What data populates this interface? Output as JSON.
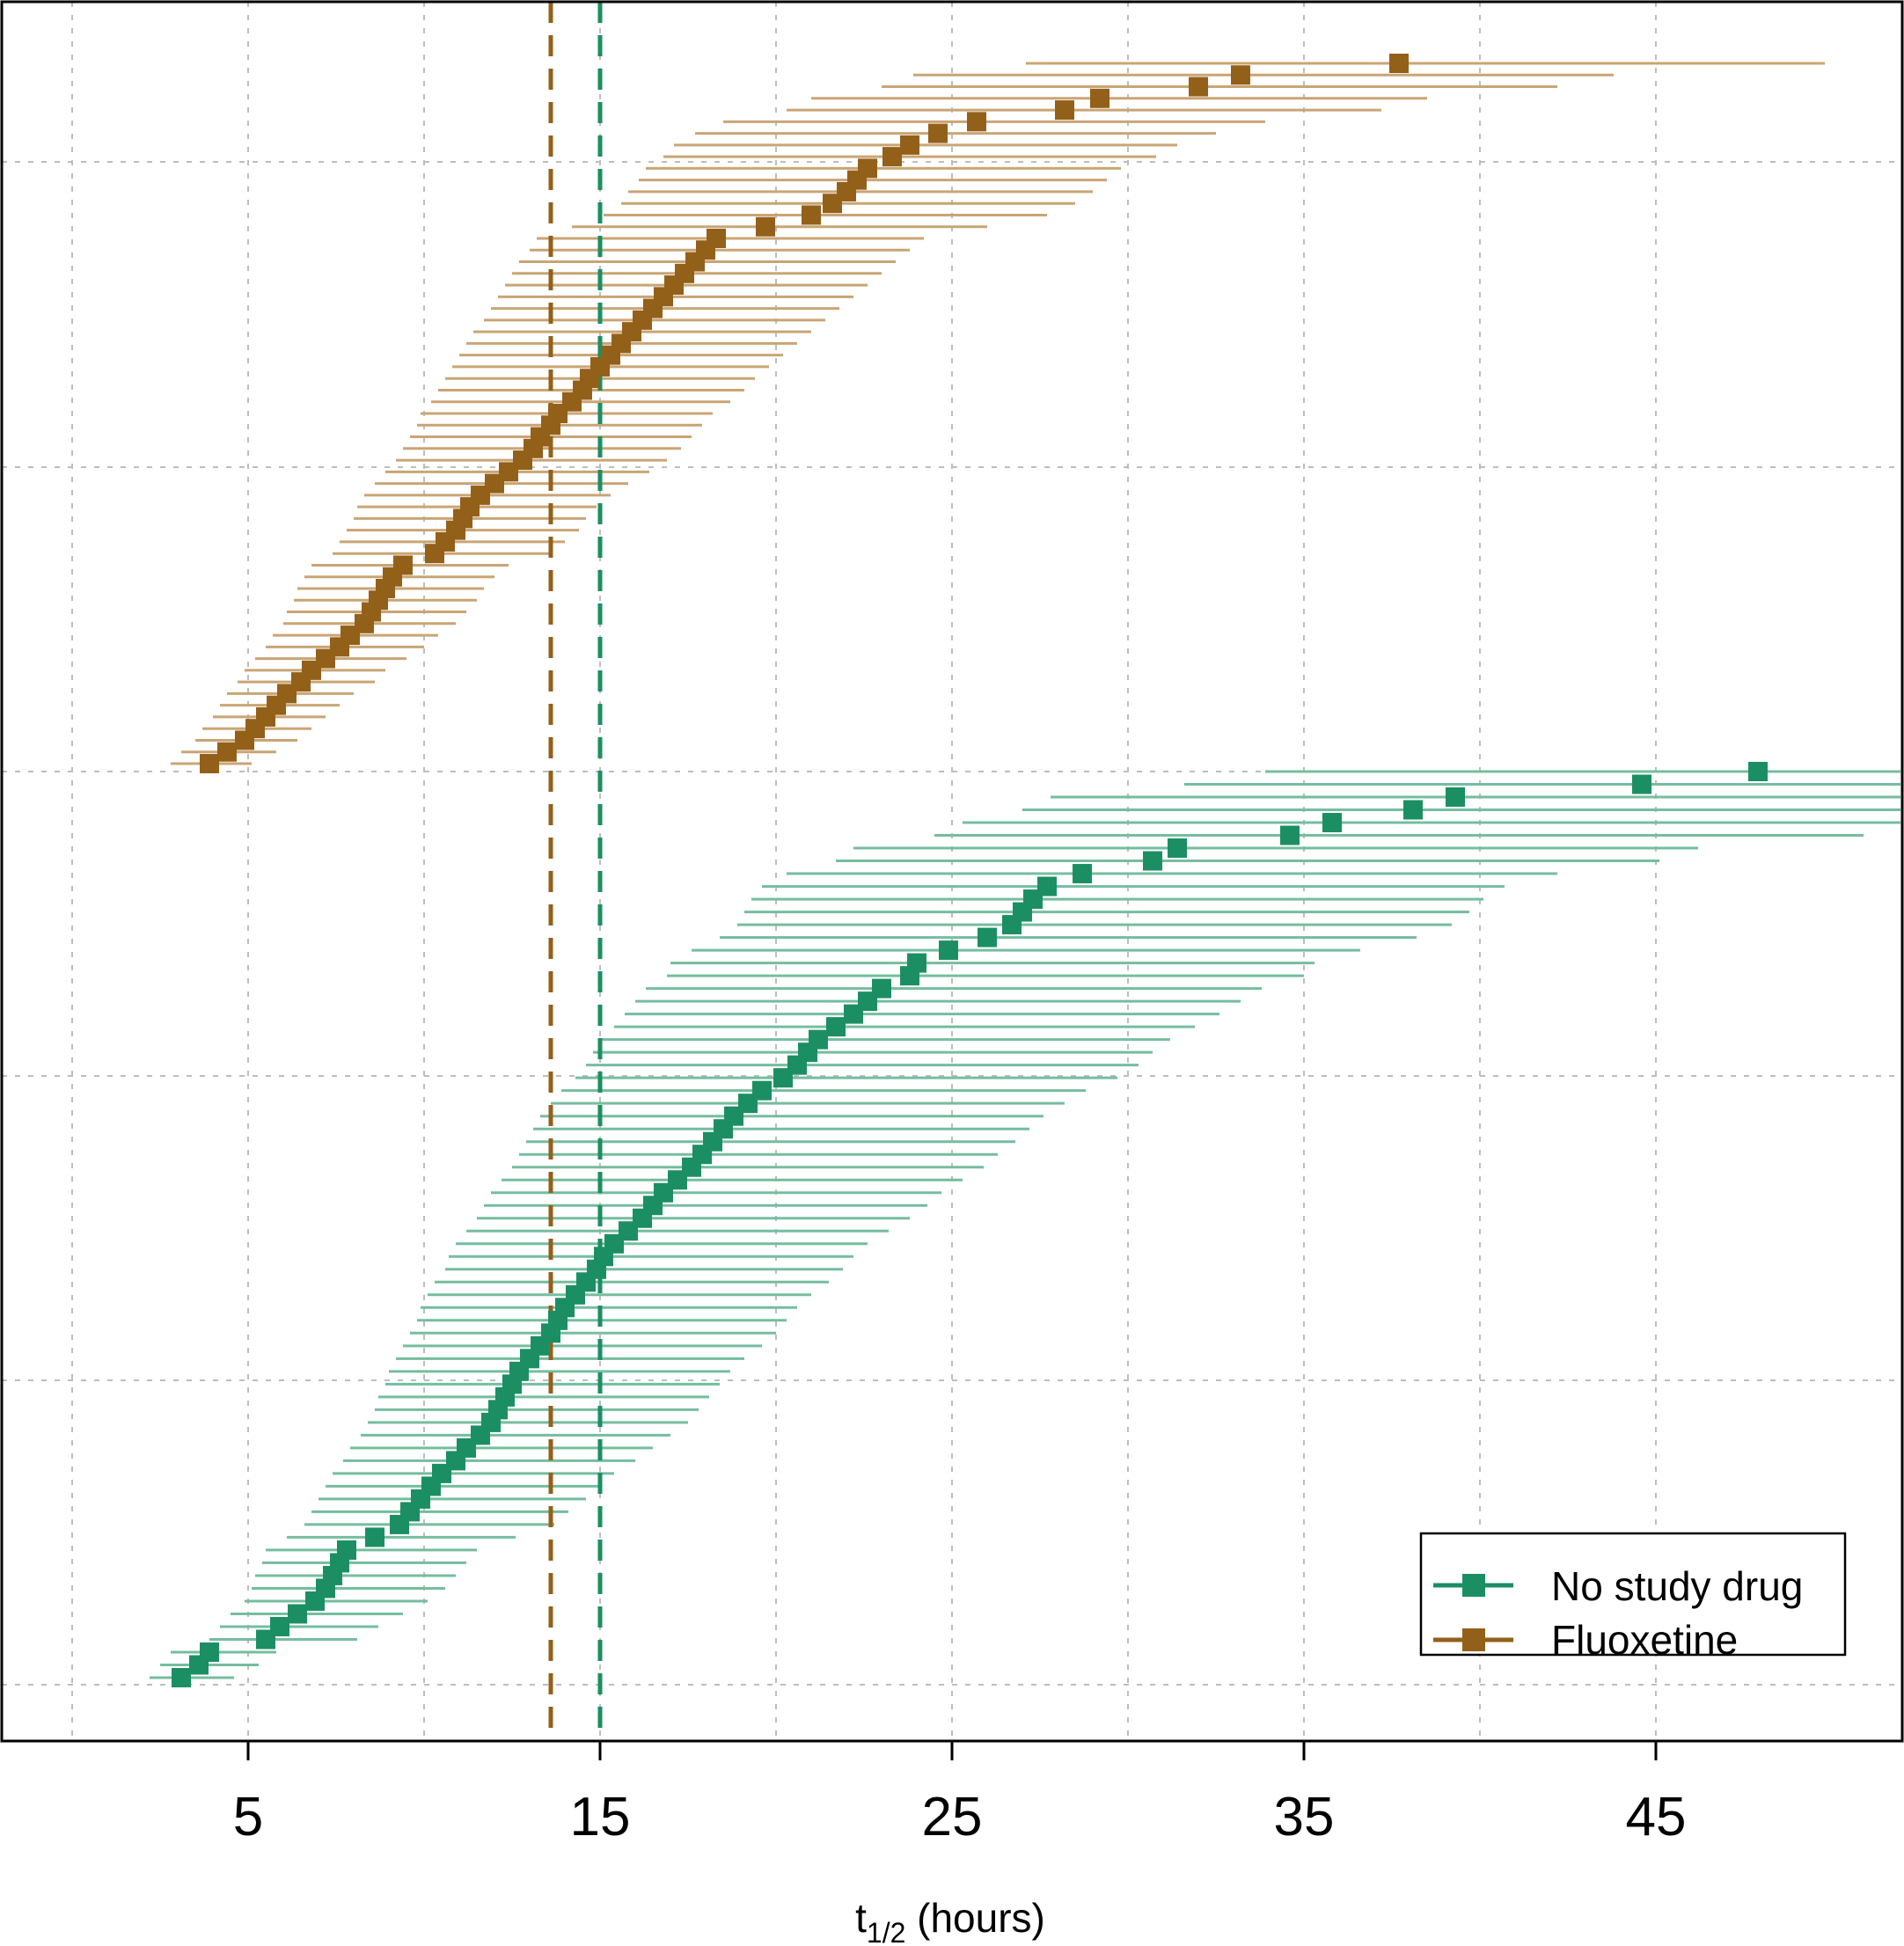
{
  "colors": {
    "no_study_drug": "#1b8f63",
    "no_study_drug_ci": "#75bd9f",
    "fluoxetine": "#93601a",
    "fluoxetine_ci": "#c9a574",
    "grid": "#bdbdbd",
    "frame": "#000000"
  },
  "chart_data": {
    "type": "scatter",
    "subtype": "ordered point estimates with horizontal confidence intervals (caterpillar plot)",
    "x_axis": {
      "label_main": "t",
      "label_subscript": "1/2",
      "label_unit": "(hours)",
      "ticks": [
        "5",
        "15",
        "25",
        "35",
        "45"
      ],
      "tick_values": [
        5,
        15,
        25,
        35,
        45
      ],
      "range": [
        0,
        47.2
      ],
      "minor_grid_values": [
        0,
        10,
        20,
        30,
        40
      ]
    },
    "y_axis": {
      "labels": "none",
      "gridlines": 6
    },
    "grid": true,
    "reference_lines": [
      {
        "series": "Fluoxetine",
        "x": 13.6,
        "style": "dashed"
      },
      {
        "series": "No study drug",
        "x": 15.0,
        "style": "dashed"
      }
    ],
    "legend": {
      "position": "bottom-right",
      "entries": [
        {
          "label": "No study drug",
          "series": "No study drug"
        },
        {
          "label": "Fluoxetine",
          "series": "Fluoxetine"
        }
      ]
    },
    "series": [
      {
        "name": "Fluoxetine",
        "note": "participants ranked by estimated half-life; each row has a point estimate with a horizontal interval",
        "estimates": [
          3.9,
          4.4,
          4.9,
          5.2,
          5.5,
          5.8,
          6.1,
          6.5,
          6.8,
          7.2,
          7.6,
          7.9,
          8.3,
          8.5,
          8.7,
          8.9,
          9.1,
          9.4,
          10.3,
          10.6,
          10.9,
          11.1,
          11.3,
          11.6,
          12.0,
          12.4,
          12.8,
          13.1,
          13.3,
          13.6,
          13.8,
          14.2,
          14.5,
          14.7,
          15.0,
          15.3,
          15.6,
          15.9,
          16.2,
          16.5,
          16.8,
          17.1,
          17.4,
          17.7,
          18.0,
          18.3,
          19.7,
          21.0,
          21.6,
          22.0,
          22.3,
          22.6,
          23.3,
          23.8,
          24.6,
          25.7,
          28.2,
          29.2,
          32.0,
          33.2,
          37.7
        ],
        "ci_low": [
          2.8,
          3.1,
          3.5,
          3.7,
          4.0,
          4.2,
          4.4,
          4.7,
          4.9,
          5.2,
          5.5,
          5.7,
          6.0,
          6.1,
          6.3,
          6.4,
          6.6,
          6.8,
          7.4,
          7.6,
          7.8,
          8.0,
          8.1,
          8.3,
          8.6,
          8.9,
          9.2,
          9.4,
          9.6,
          9.8,
          9.9,
          10.2,
          10.4,
          10.6,
          10.8,
          11.0,
          11.2,
          11.4,
          11.7,
          11.9,
          12.1,
          12.3,
          12.5,
          12.7,
          13.0,
          13.2,
          14.2,
          15.1,
          15.6,
          15.8,
          16.1,
          16.3,
          16.8,
          17.1,
          17.7,
          18.5,
          20.3,
          21.0,
          23.0,
          23.9,
          27.1
        ],
        "ci_high": [
          5.1,
          5.8,
          6.4,
          6.8,
          7.2,
          7.6,
          8.0,
          8.6,
          8.9,
          9.5,
          10.0,
          10.4,
          10.9,
          11.2,
          11.5,
          11.7,
          12.0,
          12.4,
          13.6,
          14.0,
          14.4,
          14.6,
          14.9,
          15.3,
          15.8,
          16.4,
          16.9,
          17.3,
          17.6,
          17.9,
          18.2,
          18.7,
          19.1,
          19.4,
          19.8,
          20.2,
          20.6,
          21.0,
          21.4,
          21.8,
          22.2,
          22.6,
          23.0,
          23.4,
          23.8,
          24.2,
          26.0,
          27.7,
          28.5,
          29.0,
          29.4,
          29.8,
          30.8,
          31.4,
          32.5,
          33.9,
          37.2,
          38.5,
          42.2,
          43.8,
          49.8
        ]
      },
      {
        "name": "No study drug",
        "note": "participants ranked by estimated half-life; each row has a point estimate with a horizontal interval",
        "estimates": [
          3.1,
          3.6,
          3.9,
          5.5,
          5.9,
          6.4,
          6.9,
          7.2,
          7.4,
          7.6,
          7.8,
          8.6,
          9.3,
          9.6,
          9.9,
          10.2,
          10.5,
          10.9,
          11.2,
          11.6,
          11.9,
          12.1,
          12.3,
          12.5,
          12.7,
          13.0,
          13.3,
          13.6,
          13.8,
          14.0,
          14.3,
          14.6,
          14.9,
          15.1,
          15.4,
          15.8,
          16.2,
          16.5,
          16.8,
          17.2,
          17.6,
          17.9,
          18.2,
          18.5,
          18.8,
          19.2,
          19.6,
          20.2,
          20.6,
          20.9,
          21.2,
          21.7,
          22.2,
          22.6,
          23.0,
          23.8,
          24.0,
          24.9,
          26.0,
          26.7,
          27.0,
          27.3,
          27.7,
          28.7,
          30.7,
          31.4,
          34.6,
          35.8,
          38.1,
          39.3,
          44.6,
          47.9
        ],
        "ci_low": [
          2.2,
          2.5,
          2.8,
          3.9,
          4.2,
          4.5,
          4.9,
          5.1,
          5.2,
          5.4,
          5.5,
          6.1,
          6.6,
          6.8,
          7.0,
          7.2,
          7.4,
          7.7,
          7.9,
          8.2,
          8.4,
          8.6,
          8.7,
          8.9,
          9.0,
          9.2,
          9.4,
          9.6,
          9.8,
          9.9,
          10.1,
          10.3,
          10.6,
          10.7,
          10.9,
          11.2,
          11.5,
          11.7,
          11.9,
          12.2,
          12.5,
          12.7,
          12.9,
          13.1,
          13.3,
          13.6,
          13.9,
          14.3,
          14.6,
          14.8,
          15.0,
          15.4,
          15.7,
          16.0,
          16.3,
          16.9,
          17.0,
          17.6,
          18.4,
          18.9,
          19.1,
          19.3,
          19.6,
          20.3,
          21.7,
          22.2,
          24.5,
          25.3,
          27.0,
          27.8,
          31.6,
          33.9
        ],
        "ci_high": [
          4.6,
          5.3,
          5.8,
          8.1,
          8.7,
          9.4,
          10.1,
          10.6,
          10.9,
          11.2,
          11.5,
          12.6,
          13.7,
          14.1,
          14.6,
          15.0,
          15.4,
          16.0,
          16.5,
          17.0,
          17.5,
          17.8,
          18.1,
          18.4,
          18.7,
          19.1,
          19.6,
          20.0,
          20.3,
          20.6,
          21.0,
          21.5,
          21.9,
          22.2,
          22.6,
          23.2,
          23.8,
          24.3,
          24.7,
          25.3,
          25.9,
          26.3,
          26.8,
          27.2,
          27.6,
          28.2,
          28.8,
          29.7,
          30.3,
          30.7,
          31.2,
          31.9,
          32.6,
          33.2,
          33.8,
          35.0,
          35.3,
          36.6,
          38.2,
          39.2,
          39.7,
          40.1,
          40.7,
          42.2,
          45.1,
          46.2,
          50.9,
          52.6,
          56.0,
          57.8,
          65.6,
          70.4
        ]
      }
    ]
  }
}
